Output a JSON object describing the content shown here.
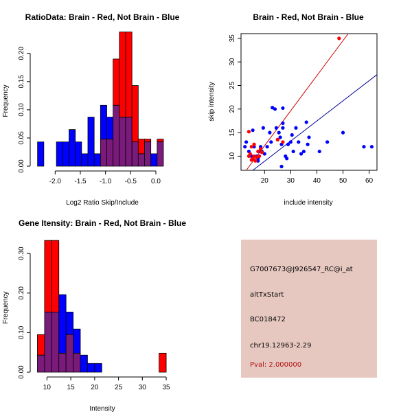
{
  "colors": {
    "red": "#ff0000",
    "blue": "#0000ff",
    "overlap": "#7a1a7a",
    "pval": "#b01010",
    "panel": "#e6c8c0"
  },
  "chart_data": [
    {
      "id": "ratio",
      "type": "bar",
      "title": "RatioData: Brain - Red, Not Brain - Blue",
      "xlabel": "Log2 Ratio Skip/Include",
      "ylabel": "Frequency",
      "xlim": [
        -2.4,
        0.3
      ],
      "ylim": [
        0,
        0.235
      ],
      "xticks": [
        -2.0,
        -1.5,
        -1.0,
        -0.5,
        0.0
      ],
      "xtick_labels": [
        "-2.0",
        "-1.5",
        "-1.0",
        "-0.5",
        "0.0"
      ],
      "yticks": [
        0.0,
        0.05,
        0.1,
        0.15,
        0.2
      ],
      "ytick_labels": [
        "0.00",
        "0.05",
        "0.10",
        "0.15",
        "0.20"
      ],
      "bin_start": -2.35,
      "bin_width": 0.125,
      "series": [
        {
          "name": "Not Brain",
          "color": "blue",
          "values": [
            0.043,
            0,
            0,
            0.043,
            0.043,
            0.065,
            0.043,
            0.022,
            0.087,
            0.022,
            0.108,
            0.087,
            0.108,
            0.087,
            0.087,
            0.043,
            0.022,
            0.043,
            0.022,
            0.043
          ]
        },
        {
          "name": "Brain",
          "color": "red",
          "values": [
            0,
            0,
            0,
            0,
            0,
            0,
            0,
            0,
            0,
            0,
            0.048,
            0.048,
            0.19,
            0.238,
            0.238,
            0.143,
            0.048,
            0.048,
            0,
            0.048
          ]
        }
      ]
    },
    {
      "id": "scatter",
      "type": "scatter",
      "title": "Brain - Red, Not Brain - Blue",
      "xlabel": "include intensity",
      "ylabel": "skip intensity",
      "xlim": [
        11,
        63
      ],
      "ylim": [
        7,
        36
      ],
      "xticks": [
        20,
        30,
        40,
        50,
        60
      ],
      "xtick_labels": [
        "20",
        "30",
        "40",
        "50",
        "60"
      ],
      "yticks": [
        10,
        15,
        20,
        25,
        30,
        35
      ],
      "ytick_labels": [
        "10",
        "15",
        "20",
        "25",
        "30",
        "35"
      ],
      "lines": [
        {
          "name": "Brain fit",
          "color": "red",
          "x": [
            13,
            52
          ],
          "y": [
            7,
            36
          ]
        },
        {
          "name": "Not Brain fit",
          "color": "blue",
          "x": [
            15.5,
            63
          ],
          "y": [
            7,
            27.3
          ]
        }
      ],
      "series": [
        {
          "name": "Not Brain",
          "color": "blue",
          "points": [
            [
              12.5,
              12
            ],
            [
              13,
              13
            ],
            [
              14,
              11
            ],
            [
              15,
              10
            ],
            [
              15.5,
              15.5
            ],
            [
              16,
              12
            ],
            [
              17,
              10
            ],
            [
              17.5,
              9.5
            ],
            [
              18,
              11
            ],
            [
              18.5,
              12
            ],
            [
              19,
              11
            ],
            [
              19.5,
              16
            ],
            [
              20,
              10.5
            ],
            [
              21,
              12
            ],
            [
              22,
              15
            ],
            [
              22.5,
              13
            ],
            [
              23,
              20.3
            ],
            [
              24,
              20
            ],
            [
              24.5,
              16
            ],
            [
              25,
              13.5
            ],
            [
              25.5,
              15
            ],
            [
              26,
              14
            ],
            [
              26.5,
              12.5
            ],
            [
              27,
              17
            ],
            [
              27,
              16
            ],
            [
              27,
              20.2
            ],
            [
              26.5,
              7.8
            ],
            [
              28,
              10
            ],
            [
              28.5,
              9.5
            ],
            [
              29,
              12.5
            ],
            [
              30,
              13
            ],
            [
              30.5,
              14.5
            ],
            [
              31,
              11
            ],
            [
              32,
              16
            ],
            [
              33,
              13
            ],
            [
              34,
              10.5
            ],
            [
              35,
              11
            ],
            [
              36,
              17.2
            ],
            [
              36.5,
              12.5
            ],
            [
              37,
              14
            ],
            [
              41,
              11
            ],
            [
              44,
              13
            ],
            [
              50,
              15
            ],
            [
              58,
              12
            ],
            [
              61,
              12
            ],
            [
              17.5,
              9
            ]
          ]
        },
        {
          "name": "Brain",
          "color": "red",
          "points": [
            [
              14,
              15.2
            ],
            [
              14.5,
              10.5
            ],
            [
              15,
              12
            ],
            [
              15.5,
              9.5
            ],
            [
              16,
              10
            ],
            [
              16.5,
              9
            ],
            [
              17,
              9.8
            ],
            [
              17.5,
              11
            ],
            [
              18,
              10
            ],
            [
              18.5,
              11.5
            ],
            [
              19,
              10.8
            ],
            [
              14,
              10
            ],
            [
              15,
              9.2
            ],
            [
              16,
              12.5
            ],
            [
              25,
              13.5
            ],
            [
              27,
              13
            ],
            [
              48.5,
              35
            ]
          ]
        }
      ]
    },
    {
      "id": "gene",
      "type": "bar",
      "title": "Gene Itensity: Brain - Red, Not Brain - Blue",
      "xlabel": "Intensity",
      "ylabel": "Frequency",
      "xlim": [
        7.5,
        36
      ],
      "ylim": [
        0,
        0.335
      ],
      "xticks": [
        10,
        15,
        20,
        25,
        30,
        35
      ],
      "xtick_labels": [
        "10",
        "15",
        "20",
        "25",
        "30",
        "35"
      ],
      "yticks": [
        0.0,
        0.1,
        0.2,
        0.3
      ],
      "ytick_labels": [
        "0.00",
        "0.10",
        "0.20",
        "0.30"
      ],
      "bin_start": 8,
      "bin_width": 1.5,
      "series": [
        {
          "name": "Not Brain",
          "color": "blue",
          "values": [
            0.043,
            0.152,
            0.152,
            0.196,
            0.152,
            0.109,
            0.043,
            0.022,
            0.022,
            0,
            0,
            0,
            0,
            0,
            0,
            0,
            0,
            0
          ]
        },
        {
          "name": "Brain",
          "color": "red",
          "values": [
            0.095,
            0.333,
            0.333,
            0.048,
            0.095,
            0.048,
            0,
            0,
            0,
            0,
            0,
            0,
            0,
            0,
            0,
            0,
            0,
            0.048
          ]
        }
      ]
    }
  ],
  "info": {
    "id": "G7007673@J926547_RC@i_at",
    "event": "altTxStart",
    "accession": "BC018472",
    "location": "chr19.12963-2.29",
    "pval": "Pval: 2.000000"
  }
}
